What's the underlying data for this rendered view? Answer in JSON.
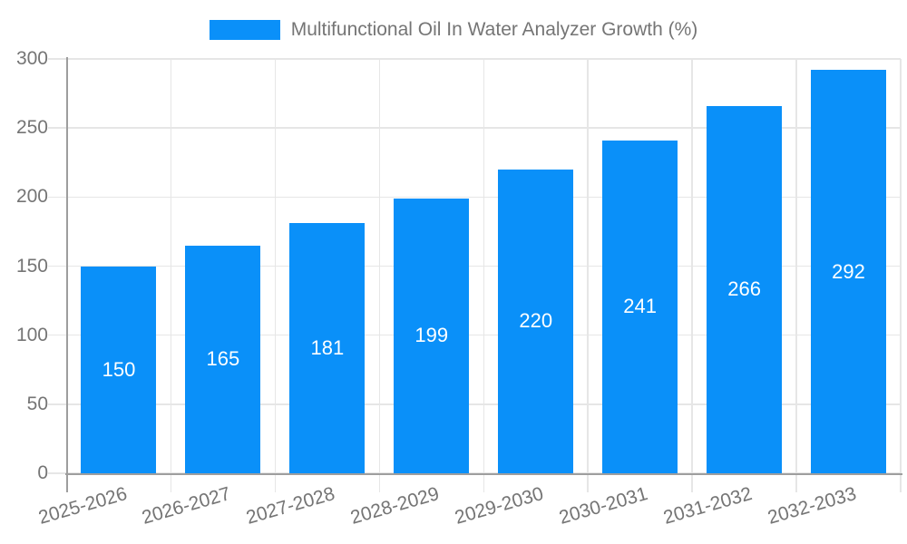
{
  "page": {
    "background": "#ffffff"
  },
  "chart_data": {
    "type": "bar",
    "title": "",
    "legend": [
      "Multifunctional Oil In Water Analyzer Growth (%)"
    ],
    "legend_position": "top",
    "categories": [
      "2025-2026",
      "2026-2027",
      "2027-2028",
      "2028-2029",
      "2029-2030",
      "2030-2031",
      "2031-2032",
      "2032-2033"
    ],
    "values": [
      150,
      165,
      181,
      199,
      220,
      241,
      266,
      292
    ],
    "xlabel": "",
    "ylabel": "",
    "ylim": [
      0,
      300
    ],
    "ytick_interval": 50,
    "yticks": [
      0,
      50,
      100,
      150,
      200,
      250,
      300
    ],
    "grid": true,
    "x_label_rotation_deg": -16,
    "colors": {
      "bar": "#0a90f9",
      "grid": "#e6e6e6",
      "axis": "#9e9e9e",
      "tick_text": "#757575",
      "legend_text": "#757575",
      "value_label_text": "#ffffff"
    }
  }
}
